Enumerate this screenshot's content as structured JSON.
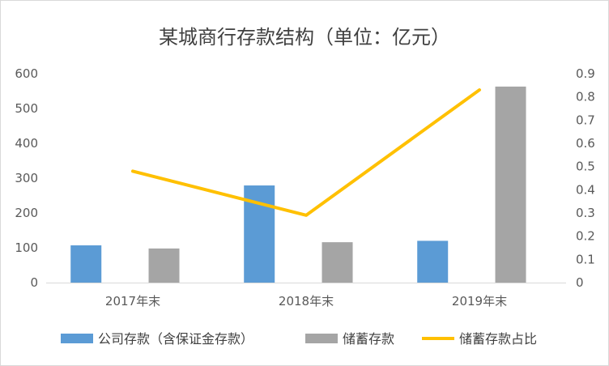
{
  "chart_data": {
    "type": "bar",
    "title": "某城商行存款结构（单位：亿元）",
    "categories": [
      "2017年末",
      "2018年末",
      "2019年末"
    ],
    "series": [
      {
        "name": "公司存款（含保证金存款）",
        "type": "bar",
        "axis": "left",
        "color": "#5B9BD5",
        "values": [
          107,
          279,
          120
        ]
      },
      {
        "name": "储蓄存款",
        "type": "bar",
        "axis": "left",
        "color": "#A5A5A5",
        "values": [
          98,
          116,
          563
        ]
      },
      {
        "name": "储蓄存款占比",
        "type": "line",
        "axis": "right",
        "color": "#FFC000",
        "values": [
          0.48,
          0.29,
          0.83
        ]
      }
    ],
    "y_left": {
      "min": 0,
      "max": 600,
      "ticks": [
        "0",
        "100",
        "200",
        "300",
        "400",
        "500",
        "600"
      ]
    },
    "y_right": {
      "min": 0,
      "max": 0.9,
      "ticks": [
        "0",
        "0.1",
        "0.2",
        "0.3",
        "0.4",
        "0.5",
        "0.6",
        "0.7",
        "0.8",
        "0.9"
      ]
    },
    "grid": false,
    "legend": "bottom"
  }
}
